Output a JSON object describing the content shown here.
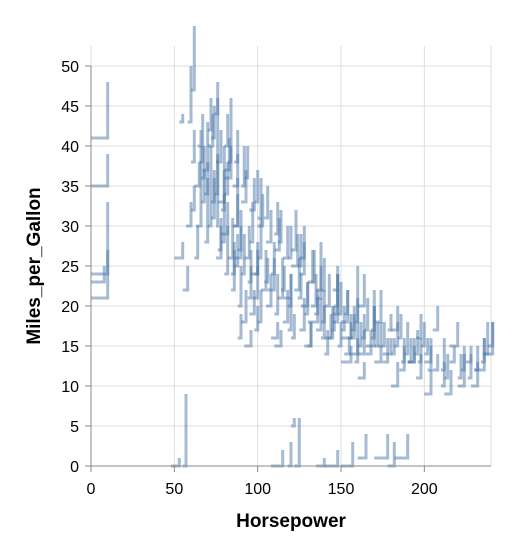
{
  "chart_data": {
    "type": "scatter",
    "mark": "step-line",
    "xlabel": "Horsepower",
    "ylabel": "Miles_per_Gallon",
    "xlim": [
      0,
      240
    ],
    "ylim": [
      0,
      52
    ],
    "x_ticks": [
      0,
      50,
      100,
      150,
      200
    ],
    "y_ticks": [
      0,
      5,
      10,
      15,
      20,
      25,
      30,
      35,
      40,
      45,
      50
    ],
    "grid": true,
    "color": "#4c78a8",
    "points": [
      [
        0,
        41,
        10,
        48
      ],
      [
        0,
        35,
        10,
        39
      ],
      [
        0,
        24,
        10,
        27
      ],
      [
        0,
        21,
        10,
        33
      ],
      [
        0,
        23,
        8,
        25
      ],
      [
        53,
        43,
        55,
        44
      ],
      [
        58,
        43,
        60,
        50
      ],
      [
        60,
        47,
        62,
        55
      ],
      [
        50,
        26,
        55,
        28
      ],
      [
        55,
        22,
        58,
        25
      ],
      [
        57,
        30,
        60,
        33
      ],
      [
        60,
        32,
        62,
        35
      ],
      [
        62,
        35,
        65,
        38
      ],
      [
        63,
        30,
        66,
        40
      ],
      [
        65,
        38,
        67,
        44
      ],
      [
        67,
        37,
        70,
        43
      ],
      [
        68,
        34,
        70,
        38
      ],
      [
        70,
        30,
        72,
        40
      ],
      [
        72,
        31,
        74,
        36
      ],
      [
        75,
        30,
        76,
        39
      ],
      [
        75,
        26,
        78,
        30
      ],
      [
        76,
        33,
        80,
        37
      ],
      [
        78,
        28,
        80,
        34
      ],
      [
        80,
        24,
        82,
        30
      ],
      [
        80,
        36,
        84,
        40
      ],
      [
        82,
        26,
        85,
        31
      ],
      [
        84,
        22,
        86,
        28
      ],
      [
        85,
        30,
        88,
        34
      ],
      [
        86,
        25,
        88,
        29
      ],
      [
        88,
        27,
        90,
        32
      ],
      [
        88,
        20,
        90,
        25
      ],
      [
        90,
        24,
        92,
        29
      ],
      [
        90,
        18,
        93,
        22
      ],
      [
        92,
        26,
        95,
        30
      ],
      [
        94,
        23,
        96,
        27
      ],
      [
        95,
        28,
        97,
        33
      ],
      [
        95,
        19,
        98,
        22
      ],
      [
        97,
        21,
        100,
        25
      ],
      [
        98,
        24,
        100,
        28
      ],
      [
        100,
        26,
        102,
        31
      ],
      [
        100,
        18,
        102,
        22
      ],
      [
        102,
        22,
        105,
        27
      ],
      [
        105,
        20,
        108,
        24
      ],
      [
        108,
        24,
        110,
        28
      ],
      [
        110,
        19,
        112,
        24
      ],
      [
        110,
        15,
        114,
        17
      ],
      [
        112,
        21,
        115,
        26
      ],
      [
        115,
        18,
        118,
        22
      ],
      [
        118,
        20,
        120,
        24
      ],
      [
        120,
        16,
        122,
        19
      ],
      [
        122,
        22,
        125,
        26
      ],
      [
        125,
        17,
        128,
        21
      ],
      [
        128,
        19,
        130,
        23
      ],
      [
        130,
        15,
        132,
        18
      ],
      [
        132,
        20,
        135,
        24
      ],
      [
        135,
        17,
        138,
        21
      ],
      [
        138,
        18,
        140,
        22
      ],
      [
        140,
        14,
        142,
        17
      ],
      [
        142,
        16,
        145,
        20
      ],
      [
        145,
        19,
        148,
        22
      ],
      [
        148,
        15,
        150,
        18
      ],
      [
        150,
        17,
        152,
        20
      ],
      [
        152,
        14,
        155,
        16
      ],
      [
        155,
        16,
        158,
        19
      ],
      [
        158,
        13,
        160,
        16
      ],
      [
        160,
        15,
        162,
        18
      ],
      [
        165,
        14,
        168,
        17
      ],
      [
        170,
        15,
        172,
        18
      ],
      [
        175,
        13,
        178,
        16
      ],
      [
        180,
        14,
        182,
        16
      ],
      [
        185,
        12,
        188,
        15
      ],
      [
        190,
        13,
        192,
        16
      ],
      [
        195,
        11,
        198,
        14
      ],
      [
        200,
        14,
        202,
        16
      ],
      [
        205,
        12,
        208,
        14
      ],
      [
        210,
        10,
        212,
        13
      ],
      [
        215,
        13,
        218,
        15
      ],
      [
        220,
        11,
        222,
        14
      ],
      [
        225,
        13,
        228,
        15
      ],
      [
        230,
        12,
        232,
        15
      ],
      [
        235,
        14,
        238,
        18
      ],
      [
        238,
        15,
        241,
        18
      ],
      [
        215,
        15,
        220,
        18
      ],
      [
        205,
        17,
        208,
        20
      ],
      [
        195,
        16,
        198,
        19
      ],
      [
        180,
        17,
        184,
        20
      ],
      [
        170,
        18,
        174,
        22
      ],
      [
        160,
        20,
        164,
        24
      ],
      [
        150,
        18,
        154,
        22
      ],
      [
        145,
        22,
        148,
        25
      ],
      [
        140,
        20,
        143,
        24
      ],
      [
        135,
        21,
        138,
        25
      ],
      [
        130,
        23,
        133,
        27
      ],
      [
        125,
        24,
        128,
        28
      ],
      [
        120,
        25,
        124,
        29
      ],
      [
        115,
        26,
        118,
        30
      ],
      [
        110,
        27,
        113,
        31
      ],
      [
        105,
        28,
        108,
        32
      ],
      [
        100,
        30,
        103,
        34
      ],
      [
        95,
        32,
        98,
        36
      ],
      [
        90,
        33,
        93,
        37
      ],
      [
        85,
        35,
        88,
        39
      ],
      [
        80,
        37,
        83,
        41
      ],
      [
        75,
        38,
        78,
        42
      ],
      [
        70,
        40,
        73,
        44
      ],
      [
        72,
        41,
        74,
        45
      ],
      [
        80,
        34,
        82,
        38
      ],
      [
        90,
        35,
        92,
        40
      ],
      [
        100,
        31,
        102,
        36
      ],
      [
        110,
        29,
        112,
        33
      ],
      [
        120,
        27,
        123,
        32
      ],
      [
        98,
        17,
        100,
        20
      ],
      [
        92,
        15,
        96,
        17
      ],
      [
        88,
        16,
        90,
        19
      ],
      [
        108,
        16,
        112,
        18
      ],
      [
        118,
        17,
        120,
        21
      ],
      [
        128,
        15,
        132,
        18
      ],
      [
        138,
        16,
        140,
        20
      ],
      [
        148,
        19,
        150,
        23
      ],
      [
        158,
        18,
        160,
        21
      ],
      [
        168,
        16,
        170,
        20
      ],
      [
        178,
        17,
        180,
        19
      ],
      [
        188,
        14,
        190,
        18
      ],
      [
        198,
        15,
        200,
        18
      ],
      [
        165,
        15,
        170,
        22
      ],
      [
        155,
        14,
        160,
        25
      ],
      [
        145,
        18,
        148,
        24
      ],
      [
        135,
        22,
        138,
        28
      ],
      [
        125,
        26,
        128,
        30
      ],
      [
        86,
        30,
        88,
        36
      ],
      [
        78,
        32,
        80,
        40
      ],
      [
        82,
        38,
        84,
        46
      ],
      [
        74,
        34,
        76,
        48
      ],
      [
        68,
        28,
        70,
        36
      ],
      [
        62,
        26,
        64,
        30
      ],
      [
        66,
        33,
        68,
        37
      ],
      [
        76,
        27,
        78,
        31
      ],
      [
        84,
        24,
        86,
        27
      ],
      [
        94,
        21,
        96,
        25
      ],
      [
        104,
        23,
        106,
        26
      ],
      [
        114,
        22,
        116,
        25
      ],
      [
        124,
        21,
        126,
        24
      ],
      [
        134,
        19,
        136,
        22
      ],
      [
        144,
        17,
        146,
        20
      ],
      [
        154,
        16,
        156,
        19
      ],
      [
        164,
        17,
        166,
        21
      ],
      [
        174,
        15,
        176,
        18
      ],
      [
        184,
        16,
        186,
        19
      ],
      [
        194,
        14,
        196,
        17
      ],
      [
        48,
        0,
        53,
        1
      ],
      [
        55,
        0,
        57,
        9
      ],
      [
        108,
        0,
        115,
        2
      ],
      [
        118,
        0,
        120,
        3
      ],
      [
        120,
        5,
        122,
        6
      ],
      [
        122,
        0,
        125,
        6
      ],
      [
        135,
        0,
        140,
        1
      ],
      [
        140,
        0,
        148,
        2
      ],
      [
        150,
        0,
        157,
        3
      ],
      [
        160,
        1,
        165,
        4
      ],
      [
        170,
        1,
        178,
        4
      ],
      [
        178,
        0,
        182,
        3
      ],
      [
        182,
        1,
        190,
        4
      ],
      [
        230,
        12,
        236,
        16
      ],
      [
        236,
        14,
        241,
        18
      ],
      [
        220,
        10,
        224,
        14
      ],
      [
        210,
        12,
        212,
        16
      ],
      [
        200,
        13,
        204,
        16
      ],
      [
        190,
        13,
        194,
        16
      ],
      [
        175,
        14,
        180,
        16
      ],
      [
        160,
        14,
        164,
        17
      ],
      [
        150,
        16,
        156,
        18
      ],
      [
        140,
        16,
        144,
        19
      ],
      [
        130,
        18,
        136,
        21
      ],
      [
        126,
        20,
        130,
        23
      ],
      [
        116,
        21,
        120,
        24
      ],
      [
        106,
        22,
        110,
        26
      ],
      [
        96,
        24,
        100,
        27
      ],
      [
        86,
        26,
        90,
        30
      ],
      [
        78,
        29,
        82,
        33
      ],
      [
        72,
        33,
        74,
        37
      ],
      [
        66,
        36,
        68,
        40
      ],
      [
        60,
        38,
        62,
        42
      ],
      [
        64,
        40,
        66,
        42
      ],
      [
        70,
        42,
        72,
        46
      ],
      [
        74,
        44,
        76,
        46
      ],
      [
        80,
        40,
        82,
        44
      ],
      [
        86,
        38,
        88,
        42
      ],
      [
        92,
        36,
        94,
        40
      ],
      [
        98,
        33,
        100,
        37
      ],
      [
        104,
        31,
        106,
        35
      ],
      [
        112,
        28,
        114,
        32
      ],
      [
        118,
        26,
        120,
        30
      ],
      [
        124,
        25,
        126,
        29
      ],
      [
        132,
        23,
        134,
        27
      ],
      [
        138,
        22,
        140,
        26
      ],
      [
        146,
        20,
        148,
        24
      ],
      [
        152,
        19,
        154,
        22
      ],
      [
        156,
        17,
        158,
        20
      ],
      [
        162,
        16,
        164,
        19
      ],
      [
        168,
        17,
        170,
        20
      ],
      [
        172,
        15,
        174,
        18
      ],
      [
        182,
        15,
        184,
        18
      ],
      [
        186,
        13,
        188,
        16
      ],
      [
        196,
        13,
        198,
        16
      ],
      [
        202,
        12,
        204,
        15
      ],
      [
        212,
        11,
        214,
        14
      ],
      [
        222,
        12,
        224,
        15
      ],
      [
        226,
        11,
        228,
        14
      ],
      [
        234,
        13,
        236,
        16
      ],
      [
        150,
        13,
        156,
        15
      ],
      [
        170,
        13,
        174,
        15
      ],
      [
        190,
        13,
        194,
        15
      ],
      [
        160,
        11,
        164,
        13
      ],
      [
        180,
        10,
        184,
        13
      ],
      [
        200,
        9,
        204,
        12
      ],
      [
        212,
        9,
        216,
        12
      ],
      [
        228,
        10,
        232,
        13
      ]
    ]
  }
}
